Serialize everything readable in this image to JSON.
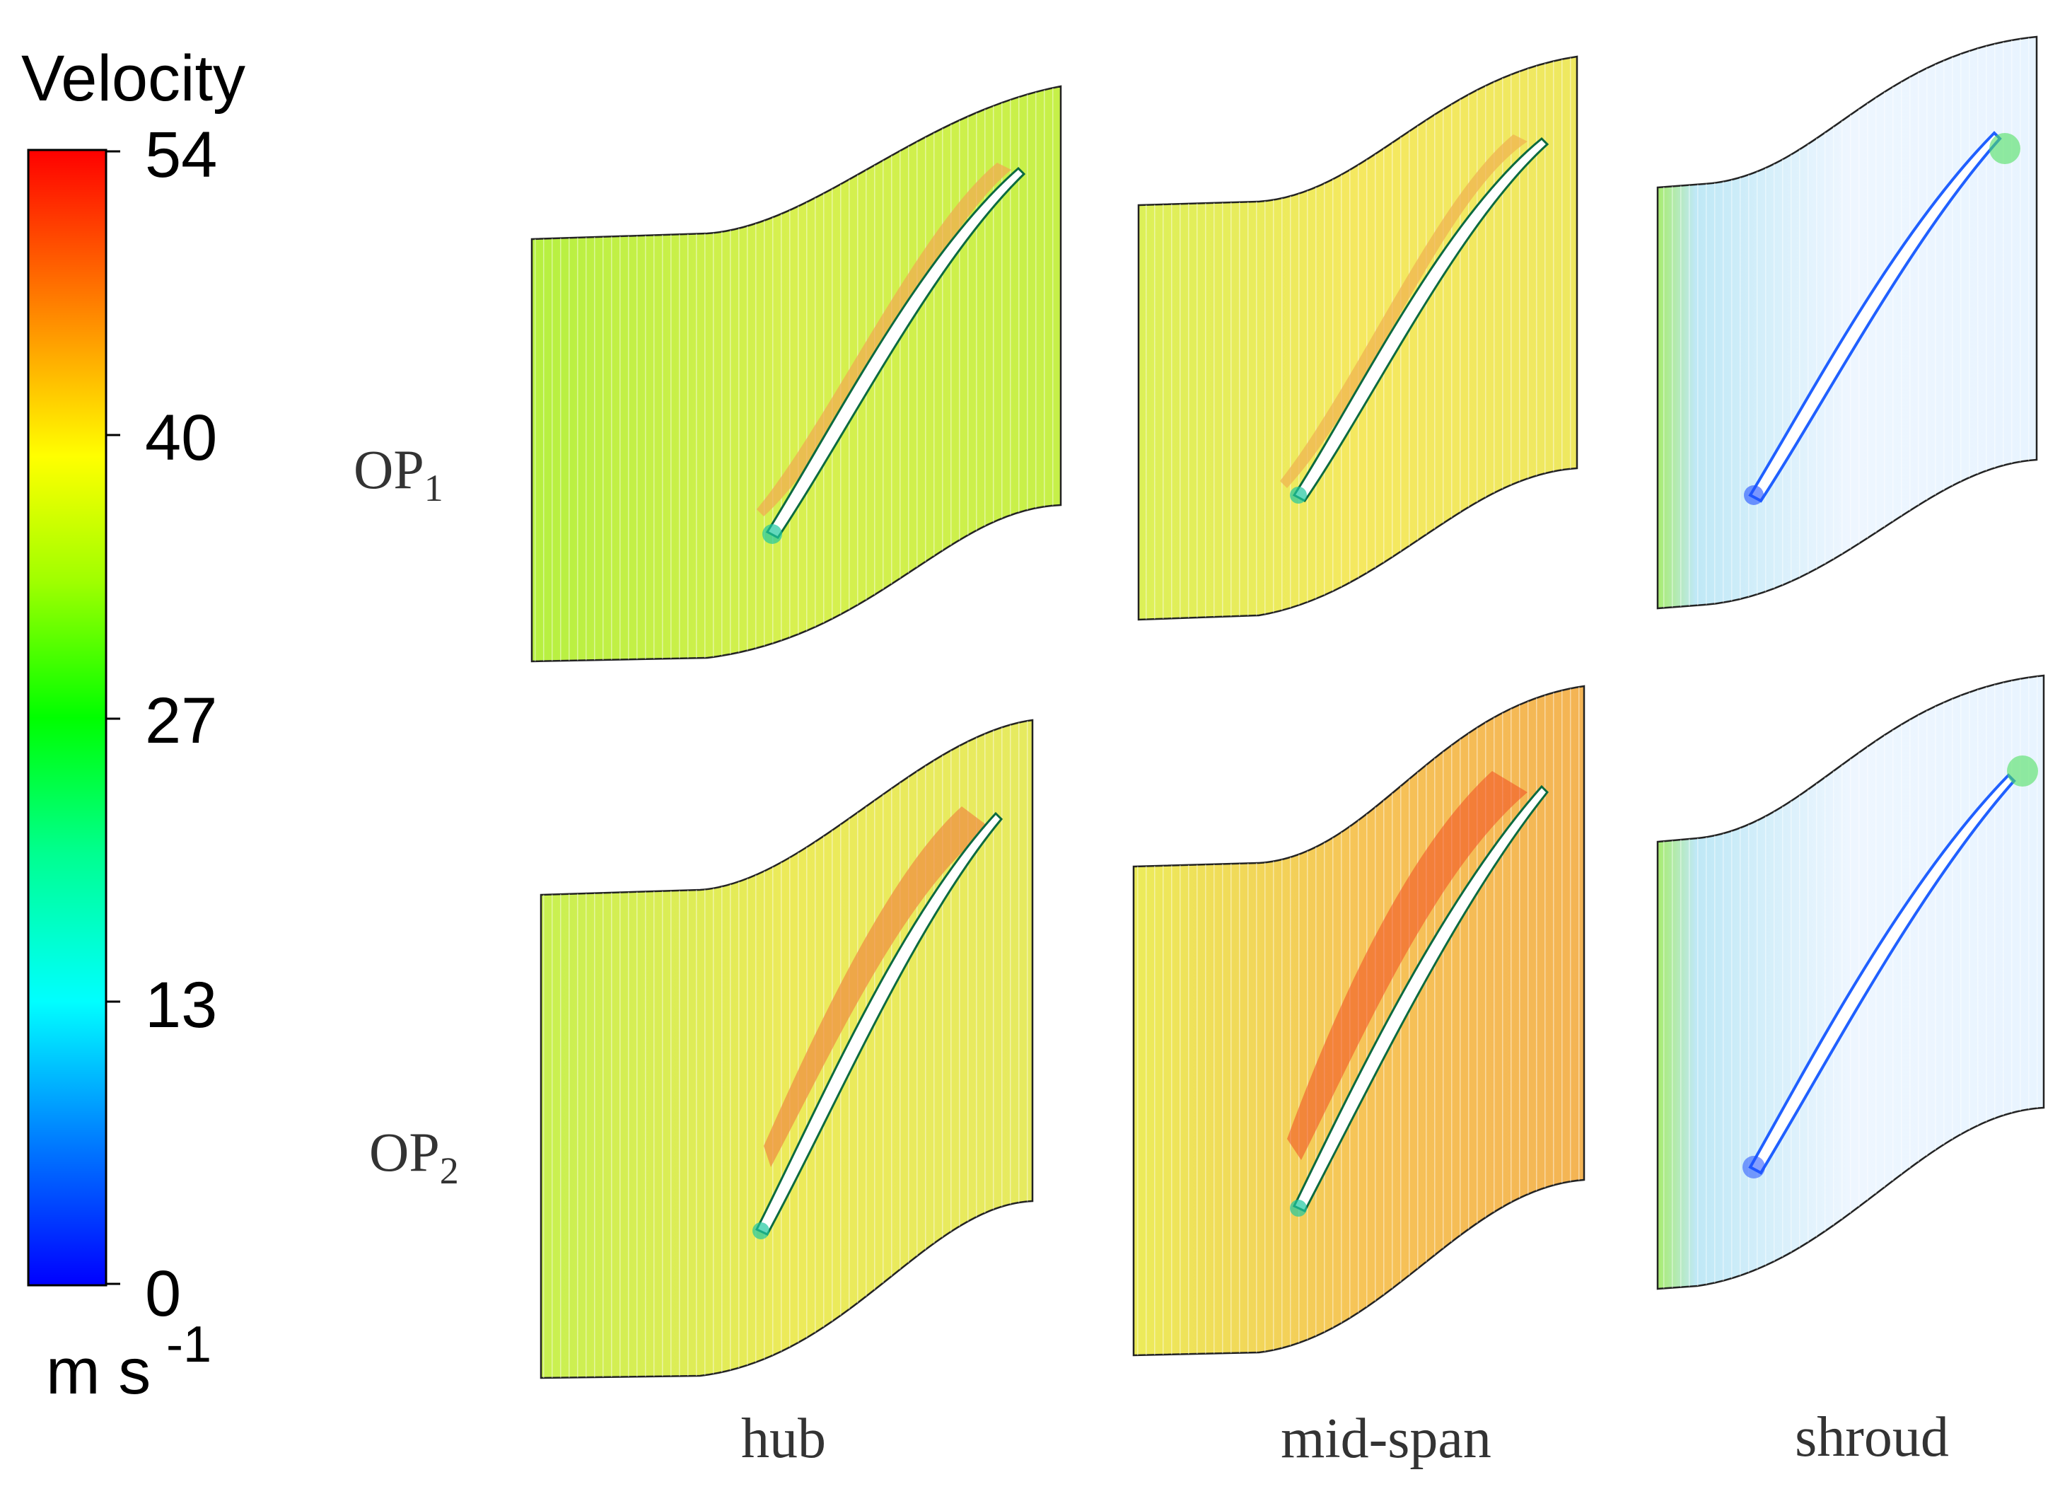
{
  "legend": {
    "title": "Velocity",
    "ticks": [
      "54",
      "40",
      "27",
      "13",
      "0"
    ],
    "unit_base": "m s",
    "unit_exp": "-1",
    "colormap": [
      "#ff0000",
      "#ff7a00",
      "#ffff00",
      "#7fff00",
      "#00ff00",
      "#00ff80",
      "#00ffff",
      "#0080ff",
      "#0000ff"
    ]
  },
  "rows": [
    {
      "label": "OP",
      "sub": "1"
    },
    {
      "label": "OP",
      "sub": "2"
    }
  ],
  "columns": [
    "hub",
    "mid-span",
    "shroud"
  ],
  "panels": [
    {
      "row": 0,
      "col": 0,
      "field": "yellow-green flow with orange band on blade suction side"
    },
    {
      "row": 0,
      "col": 1,
      "field": "yellow flow with orange near blade"
    },
    {
      "row": 0,
      "col": 2,
      "field": "sparse blue vectors, green at inlet"
    },
    {
      "row": 1,
      "col": 0,
      "field": "yellow-green flow with red-orange band"
    },
    {
      "row": 1,
      "col": 1,
      "field": "orange-red flow"
    },
    {
      "row": 1,
      "col": 2,
      "field": "sparse blue vectors, green at inlet"
    }
  ]
}
